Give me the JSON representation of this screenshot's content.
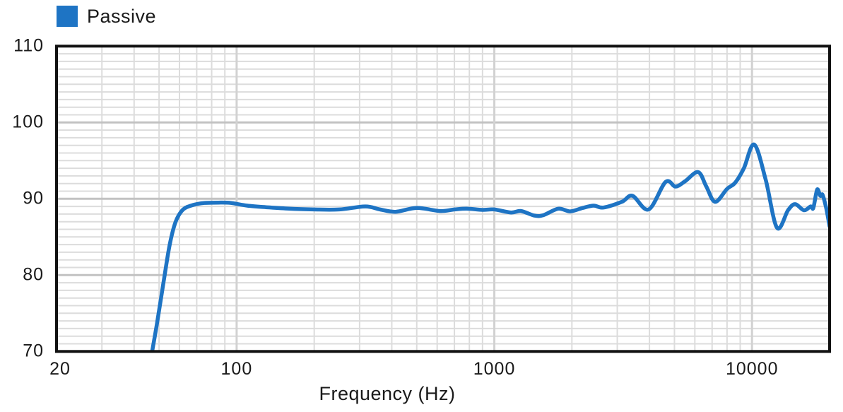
{
  "legend": {
    "label": "Passive",
    "color": "#1E74C4",
    "position": "top-left"
  },
  "colors": {
    "curve": "#1E74C4",
    "grid_minor": "#DCDCDC",
    "grid_major": "#C2C2C2",
    "border": "#111111",
    "text": "#1A1A1A",
    "background": "#FFFFFF"
  },
  "chart_data": {
    "type": "line",
    "title": "",
    "xlabel": "Frequency (Hz)",
    "ylabel": "",
    "x_scale": "log",
    "xlim": [
      20,
      20000
    ],
    "ylim": [
      70,
      110
    ],
    "x_tick_values": [
      20,
      100,
      1000,
      10000
    ],
    "x_tick_labels": [
      "20",
      "100",
      "1000",
      "10000"
    ],
    "y_tick_values": [
      110,
      100,
      90,
      80,
      70
    ],
    "y_tick_labels": [
      "110",
      "100",
      "90",
      "80",
      "70"
    ],
    "grid": {
      "on": true,
      "y_minor_step_db": 1,
      "y_major_step_db": 10,
      "x_minor": "log-decades"
    },
    "legend_position": "top-left",
    "series": [
      {
        "name": "Passive",
        "color": "#1E74C4",
        "points_hz_db": [
          [
            47,
            70.0
          ],
          [
            49,
            73.5
          ],
          [
            52,
            79.0
          ],
          [
            55,
            84.0
          ],
          [
            58,
            87.0
          ],
          [
            62,
            88.6
          ],
          [
            68,
            89.2
          ],
          [
            75,
            89.45
          ],
          [
            85,
            89.5
          ],
          [
            95,
            89.45
          ],
          [
            110,
            89.1
          ],
          [
            130,
            88.9
          ],
          [
            160,
            88.7
          ],
          [
            200,
            88.6
          ],
          [
            250,
            88.6
          ],
          [
            316,
            89.0
          ],
          [
            360,
            88.6
          ],
          [
            414,
            88.3
          ],
          [
            500,
            88.8
          ],
          [
            616,
            88.4
          ],
          [
            700,
            88.6
          ],
          [
            780,
            88.7
          ],
          [
            900,
            88.55
          ],
          [
            1000,
            88.6
          ],
          [
            1160,
            88.2
          ],
          [
            1270,
            88.4
          ],
          [
            1430,
            87.8
          ],
          [
            1550,
            87.85
          ],
          [
            1770,
            88.7
          ],
          [
            1970,
            88.35
          ],
          [
            2200,
            88.8
          ],
          [
            2430,
            89.1
          ],
          [
            2650,
            88.85
          ],
          [
            3125,
            89.6
          ],
          [
            3435,
            90.4
          ],
          [
            3970,
            88.6
          ],
          [
            4620,
            92.2
          ],
          [
            5050,
            91.6
          ],
          [
            5500,
            92.3
          ],
          [
            6180,
            93.5
          ],
          [
            6650,
            91.6
          ],
          [
            7190,
            89.6
          ],
          [
            8000,
            91.3
          ],
          [
            8600,
            92.1
          ],
          [
            9300,
            94.0
          ],
          [
            10200,
            97.1
          ],
          [
            11300,
            92.5
          ],
          [
            12500,
            86.2
          ],
          [
            13800,
            88.5
          ],
          [
            14700,
            89.3
          ],
          [
            15900,
            88.5
          ],
          [
            16900,
            89.0
          ],
          [
            17300,
            88.8
          ],
          [
            17900,
            91.2
          ],
          [
            18400,
            90.4
          ],
          [
            18800,
            90.5
          ],
          [
            19400,
            88.8
          ],
          [
            20000,
            86.4
          ]
        ]
      }
    ]
  }
}
